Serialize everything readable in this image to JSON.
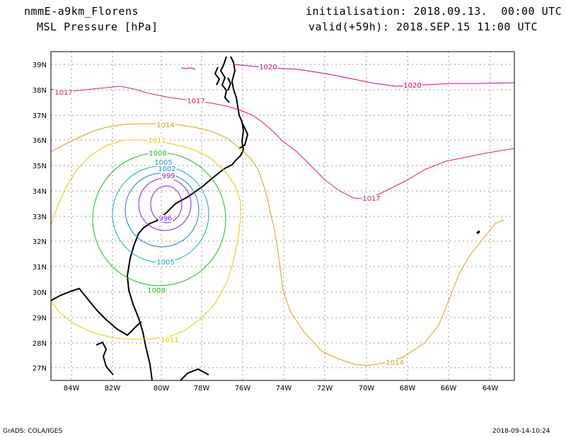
{
  "header": {
    "model": "nmmE-a9km_Florens",
    "field": "MSL Pressure [hPa]",
    "init": "initialisation: 2018.09.13.  00:00 UTC",
    "valid": "valid(+59h): 2018.SEP.15 11:00 UTC"
  },
  "footer": {
    "software": "GrADS: COLA/IGES",
    "timestamp": "2018-09-14-10:24"
  },
  "map": {
    "lat_labels": [
      "39N",
      "38N",
      "37N",
      "36N",
      "35N",
      "34N",
      "33N",
      "32N",
      "31N",
      "30N",
      "29N",
      "28N",
      "27N"
    ],
    "lon_labels": [
      "84W",
      "82W",
      "80W",
      "78W",
      "76W",
      "74W",
      "72W",
      "70W",
      "68W",
      "66W",
      "64W"
    ],
    "contour_labels": [
      {
        "text": "1020",
        "color": "#d0007a"
      },
      {
        "text": "1020",
        "color": "#d0007a"
      },
      {
        "text": "1017",
        "color": "#e8243a"
      },
      {
        "text": "1017",
        "color": "#e8243a"
      },
      {
        "text": "1017",
        "color": "#e8243a"
      },
      {
        "text": "1014",
        "color": "#d9a020"
      },
      {
        "text": "1014",
        "color": "#d9a020"
      },
      {
        "text": "1011",
        "color": "#e6cc00"
      },
      {
        "text": "1011",
        "color": "#e6cc00"
      },
      {
        "text": "1008",
        "color": "#22bb22"
      },
      {
        "text": "1008",
        "color": "#22bb22"
      },
      {
        "text": "1005",
        "color": "#1aa9c0"
      },
      {
        "text": "1005",
        "color": "#1aa9c0"
      },
      {
        "text": "1002",
        "color": "#1f7fe0"
      },
      {
        "text": "999",
        "color": "#8b22d9"
      },
      {
        "text": "996",
        "color": "#8b22d9"
      }
    ]
  }
}
